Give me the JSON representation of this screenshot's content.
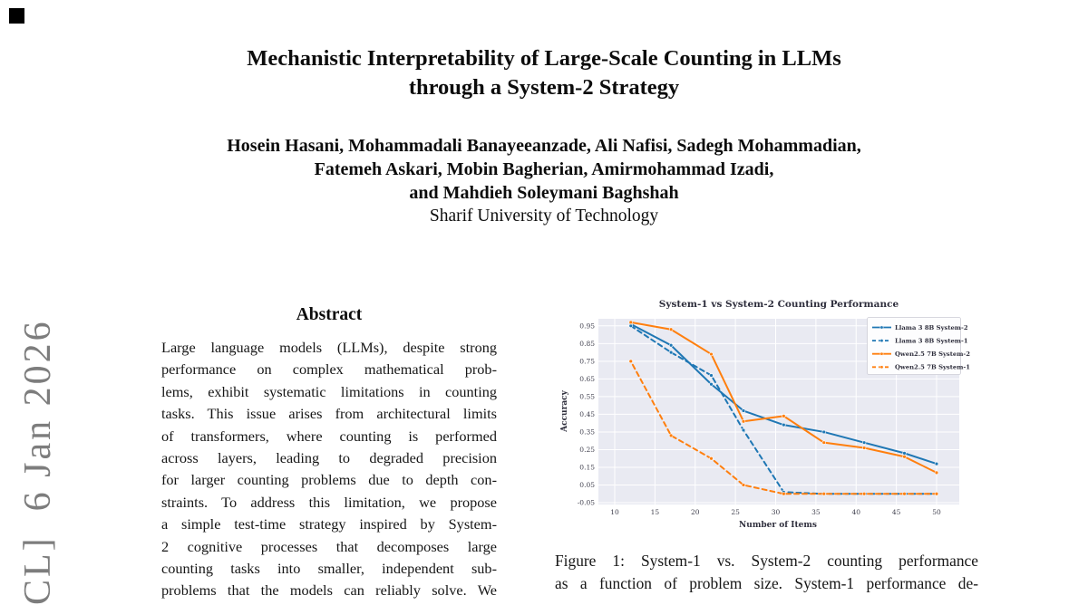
{
  "banner": {
    "text": "CL]  6 Jan 2026"
  },
  "title": {
    "line1": "Mechanistic Interpretability of Large-Scale Counting in LLMs",
    "line2": "through a System-2 Strategy"
  },
  "authors": {
    "line1": "Hosein Hasani, Mohammadali Banayeeanzade, Ali Nafisi, Sadegh Mohammadian,",
    "line2": "Fatemeh Askari, Mobin Bagherian, Amirmohammad Izadi,",
    "line3": "and Mahdieh Soleymani Baghshah",
    "affiliation": "Sharif University of Technology"
  },
  "abstract": {
    "heading": "Abstract",
    "lines": [
      "Large language models (LLMs), despite strong",
      "performance on complex mathematical prob-",
      "lems, exhibit systematic limitations in counting",
      "tasks. This issue arises from architectural limits",
      "of transformers, where counting is performed",
      "across layers, leading to degraded precision",
      "for larger counting problems due to depth con-",
      "straints. To address this limitation, we propose",
      "a simple test-time strategy inspired by System-",
      "2 cognitive processes that decomposes large",
      "counting tasks into smaller, independent sub-",
      "problems that the models can reliably solve. We"
    ]
  },
  "figure_caption": {
    "line1": "Figure 1: System-1 vs. System-2 counting performance",
    "line2": "as a function of problem size. System-1 performance de-"
  },
  "chart_data": {
    "type": "line",
    "title": "System-1 vs System-2 Counting Performance",
    "xlabel": "Number of Items",
    "ylabel": "Accuracy",
    "x": [
      12,
      17,
      22,
      26,
      31,
      36,
      41,
      46,
      50
    ],
    "series": [
      {
        "name": "Llama 3 8B System-2",
        "color": "#1f77b4",
        "style": "solid",
        "values": [
          0.96,
          0.84,
          0.62,
          0.47,
          0.39,
          0.35,
          0.29,
          0.23,
          0.17
        ]
      },
      {
        "name": "Llama 3 8B System-1",
        "color": "#1f77b4",
        "style": "dashed",
        "values": [
          0.95,
          0.8,
          0.67,
          0.36,
          0.01,
          0.0,
          0.0,
          0.0,
          0.0
        ]
      },
      {
        "name": "Qwen2.5 7B System-2",
        "color": "#ff7f0e",
        "style": "solid",
        "values": [
          0.97,
          0.93,
          0.79,
          0.41,
          0.44,
          0.29,
          0.26,
          0.21,
          0.12
        ]
      },
      {
        "name": "Qwen2.5 7B System-1",
        "color": "#ff7f0e",
        "style": "dashed",
        "values": [
          0.75,
          0.33,
          0.2,
          0.05,
          0.0,
          0.0,
          0.0,
          0.0,
          0.0
        ]
      }
    ],
    "xlim": [
      10,
      50
    ],
    "ylim": [
      -0.06,
      0.99
    ],
    "xticks": [
      10,
      15,
      20,
      25,
      30,
      35,
      40,
      45,
      50
    ],
    "yticks": [
      -0.05,
      0.05,
      0.15,
      0.25,
      0.35,
      0.45,
      0.55,
      0.65,
      0.75,
      0.85,
      0.95
    ],
    "grid": true,
    "legend_position": "upper right",
    "plot_bg": "#e9eaf2",
    "grid_color": "#ffffff",
    "tick_color": "#3f3f4d",
    "text_color": "#2e2e3c"
  }
}
